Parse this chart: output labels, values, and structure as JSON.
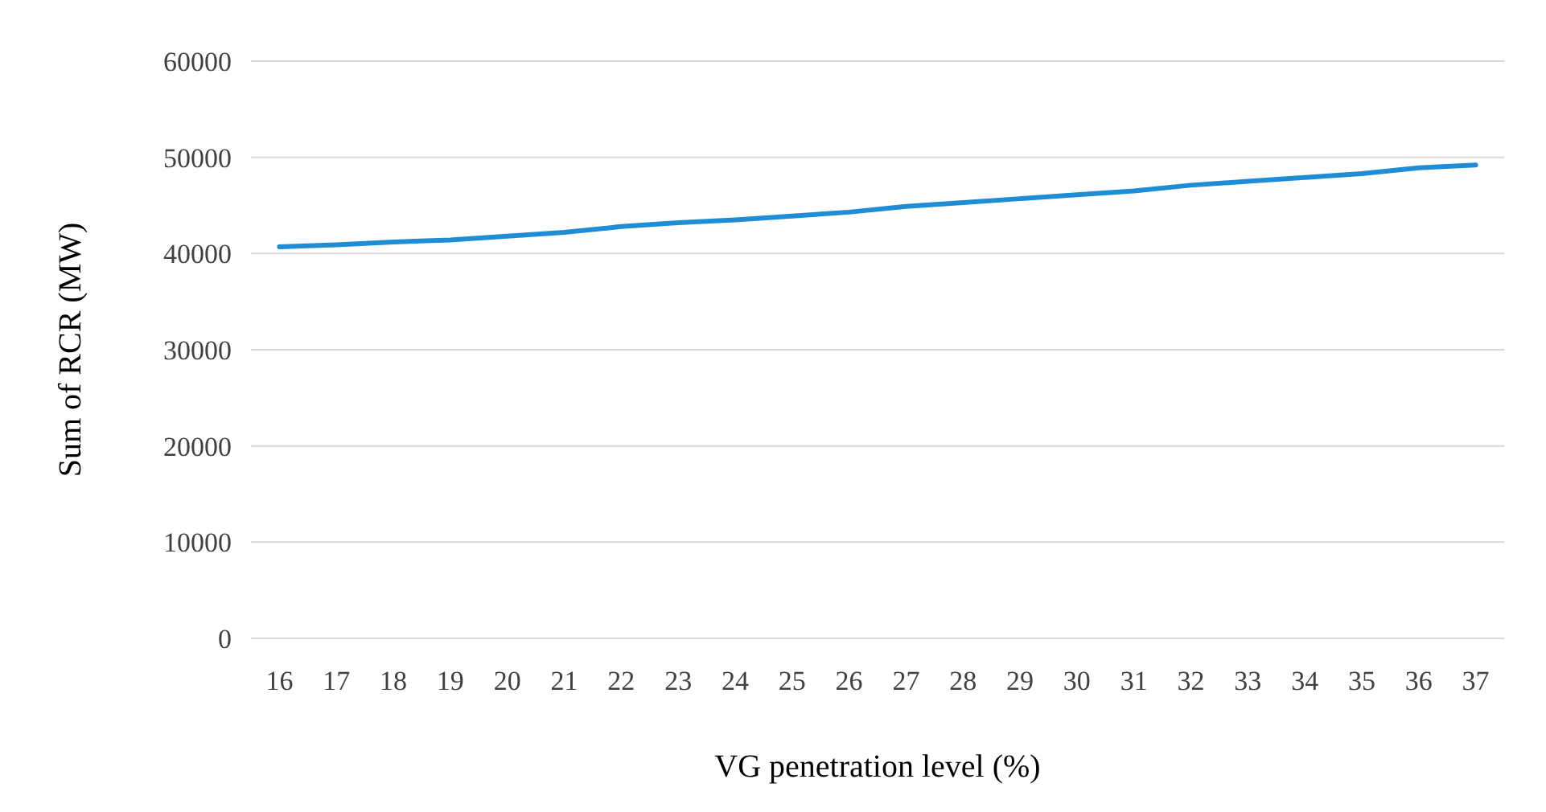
{
  "chart_data": {
    "type": "line",
    "xlabel": "VG penetration level (%)",
    "ylabel": "Sum of RCR (MW)",
    "categories": [
      "16",
      "17",
      "18",
      "19",
      "20",
      "21",
      "22",
      "23",
      "24",
      "25",
      "26",
      "27",
      "28",
      "29",
      "30",
      "31",
      "32",
      "33",
      "34",
      "35",
      "36",
      "37"
    ],
    "series": [
      {
        "color": "#1f8dd6",
        "values": [
          40700,
          40900,
          41200,
          41400,
          41800,
          42200,
          42800,
          43200,
          43500,
          43900,
          44300,
          44900,
          45300,
          45700,
          46100,
          46500,
          47100,
          47500,
          47900,
          48300,
          48900,
          49200
        ]
      }
    ],
    "ylim": [
      0,
      60000
    ],
    "yticks": [
      0,
      10000,
      20000,
      30000,
      40000,
      50000,
      60000
    ],
    "grid": "y",
    "marker": "none",
    "line_style": "solid"
  }
}
